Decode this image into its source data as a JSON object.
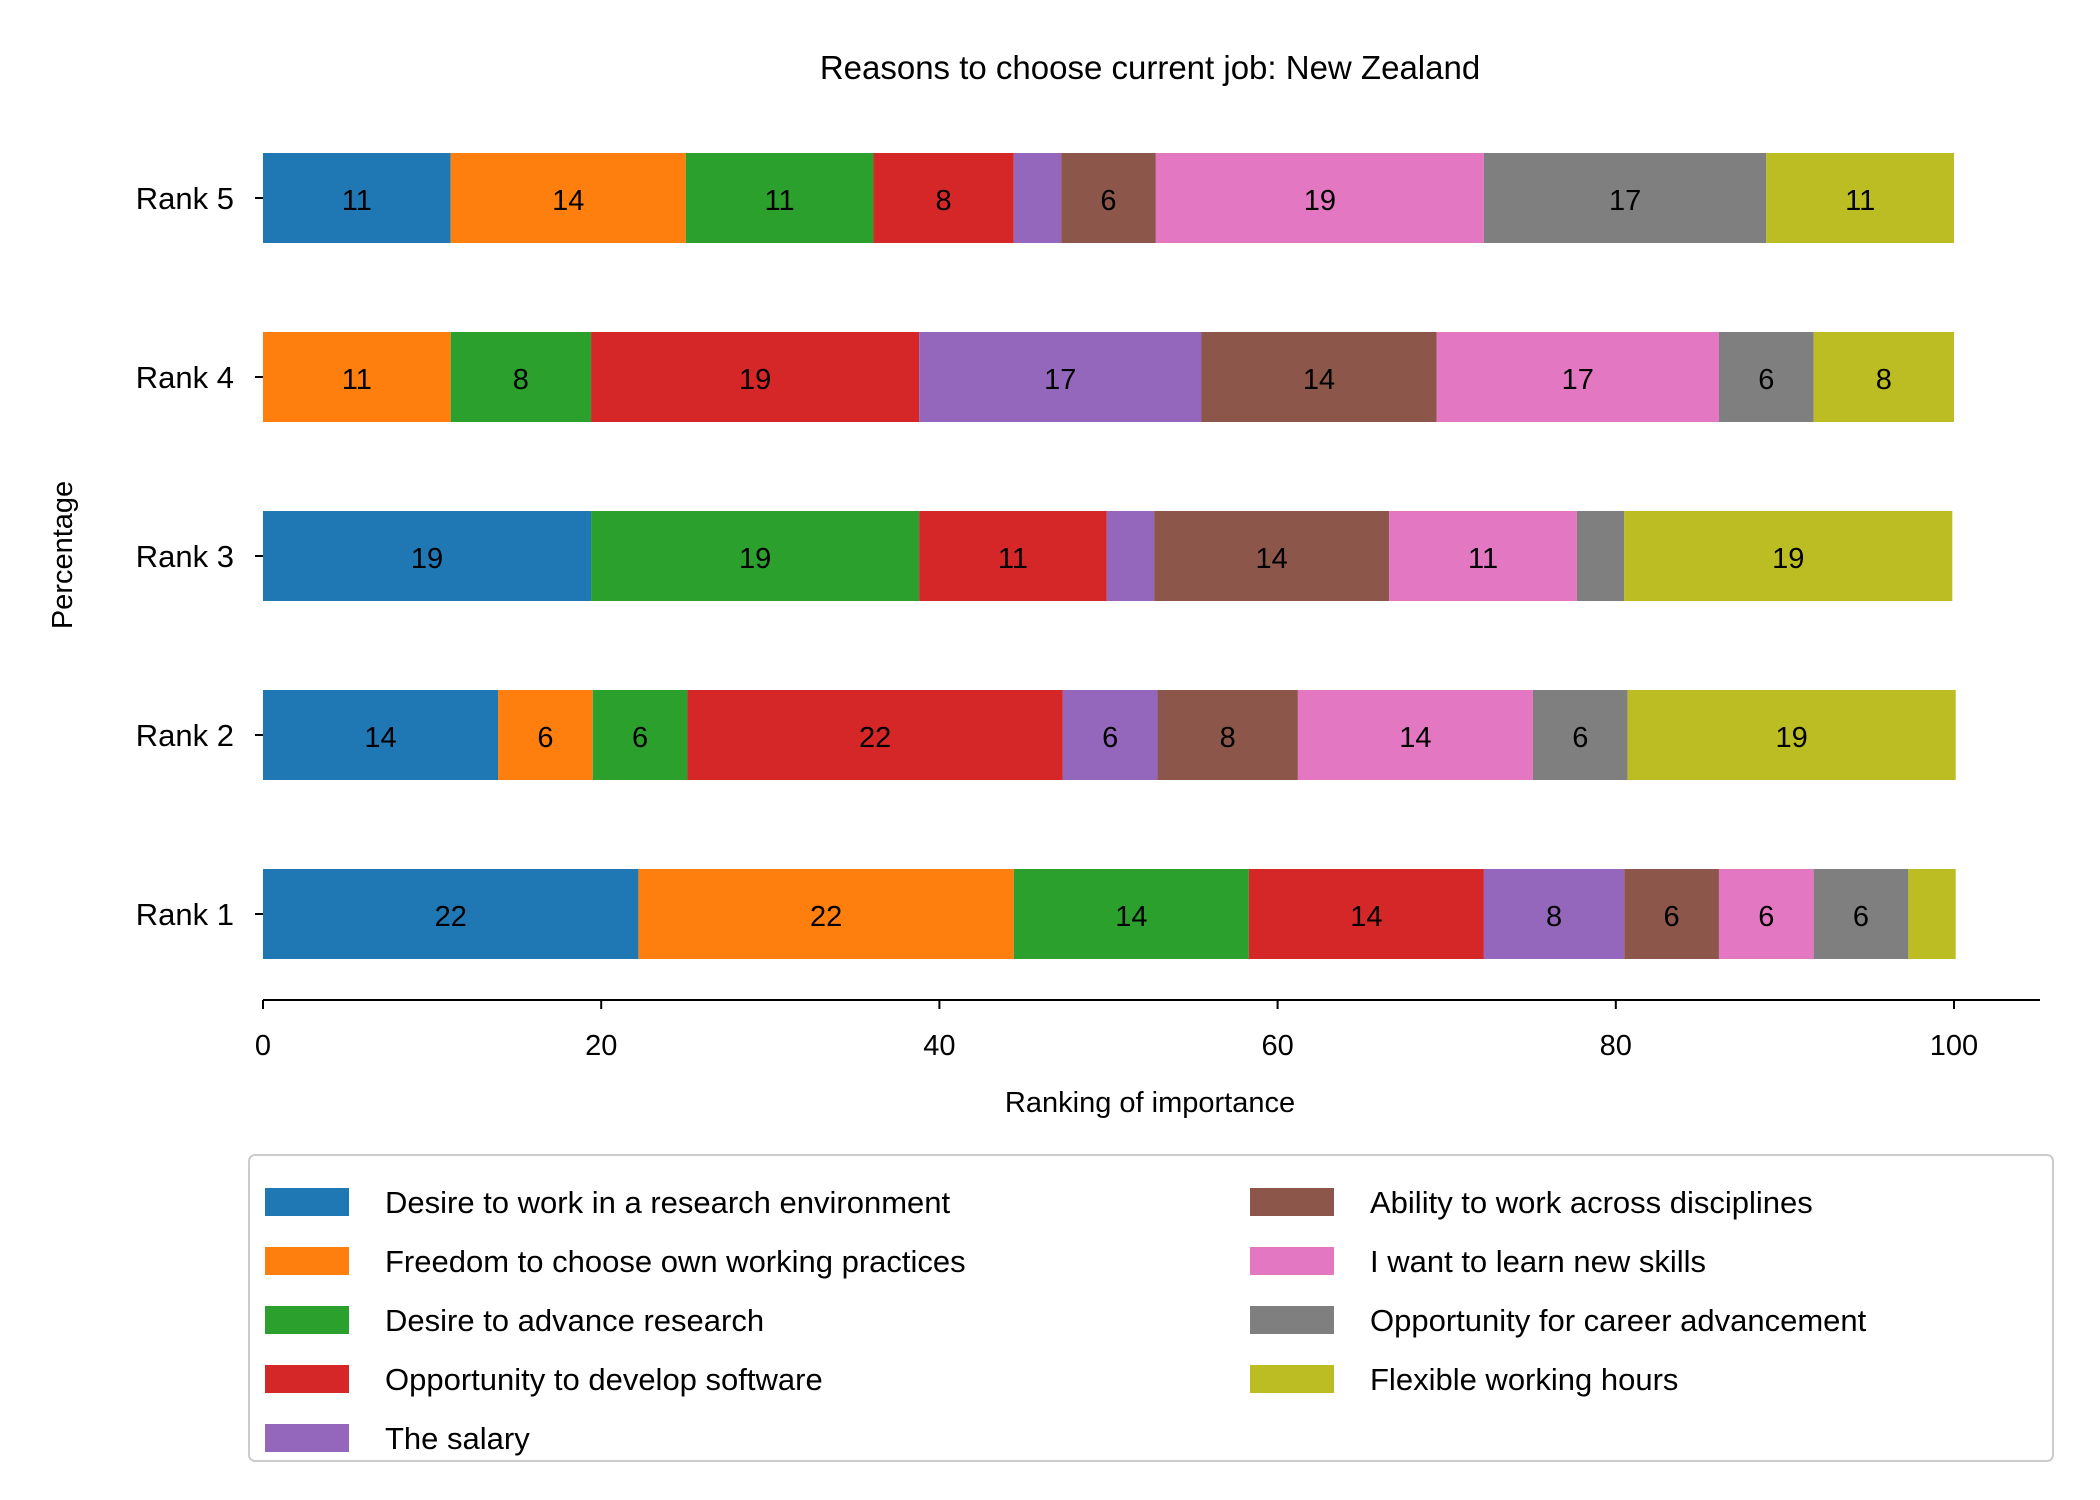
{
  "chart_data": {
    "type": "bar",
    "orientation": "horizontal",
    "stacked": true,
    "title": "Reasons to choose current job: New Zealand",
    "xlabel": "Ranking of importance",
    "ylabel": "Percentage",
    "xlim": [
      0,
      105
    ],
    "xticks": [
      0,
      20,
      40,
      60,
      80,
      100
    ],
    "categories": [
      "Rank 1",
      "Rank 2",
      "Rank 3",
      "Rank 4",
      "Rank 5"
    ],
    "label_threshold": 5,
    "legend_position": "bottom",
    "series": [
      {
        "name": "Desire to work in a research environment",
        "color": "#1f77b4",
        "values": [
          22.2,
          13.9,
          19.4,
          0,
          11.1
        ]
      },
      {
        "name": "Freedom to choose own working practices",
        "color": "#ff7f0e",
        "values": [
          22.2,
          5.6,
          0,
          11.1,
          13.9
        ]
      },
      {
        "name": "Desire to advance research",
        "color": "#2ca02c",
        "values": [
          13.9,
          5.6,
          19.4,
          8.3,
          11.1
        ]
      },
      {
        "name": "Opportunity to develop software",
        "color": "#d62728",
        "values": [
          13.9,
          22.2,
          11.1,
          19.4,
          8.3
        ]
      },
      {
        "name": "The salary",
        "color": "#9467bd",
        "values": [
          8.3,
          5.6,
          2.8,
          16.7,
          2.8
        ]
      },
      {
        "name": "Ability to work across disciplines",
        "color": "#8c564b",
        "values": [
          5.6,
          8.3,
          13.9,
          13.9,
          5.6
        ]
      },
      {
        "name": "I want to learn new skills",
        "color": "#e377c2",
        "values": [
          5.6,
          13.9,
          11.1,
          16.7,
          19.4
        ]
      },
      {
        "name": "Opportunity for career advancement",
        "color": "#7f7f7f",
        "values": [
          5.6,
          5.6,
          2.8,
          5.6,
          16.7
        ]
      },
      {
        "name": "Flexible working hours",
        "color": "#bcbd22",
        "values": [
          2.8,
          19.4,
          19.4,
          8.3,
          11.1
        ]
      }
    ]
  }
}
